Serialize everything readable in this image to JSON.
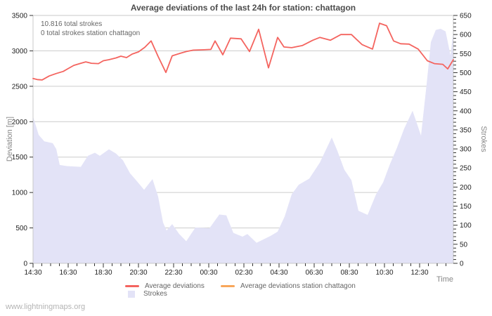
{
  "title": "Average deviations of the last 24h for station: chattagon",
  "annotation": {
    "line1": "10.816 total strokes",
    "line2": "0 total strokes station chattagon"
  },
  "watermark": "www.lightningmaps.org",
  "axes": {
    "left": {
      "label": "Deviation [m]"
    },
    "right": {
      "label": "Strokes"
    },
    "x": {
      "label": "Time"
    }
  },
  "legend": {
    "items": [
      {
        "label": "Average deviations",
        "color": "#f4645f",
        "shape": "line"
      },
      {
        "label": "Average deviations station chattagon",
        "color": "#f8a65a",
        "shape": "line"
      },
      {
        "label": "Strokes",
        "color": "#e3e3f7",
        "shape": "square"
      }
    ]
  },
  "colors": {
    "line_red": "#f4645f",
    "line_orange": "#f8a65a",
    "area_lavender": "#e3e3f7",
    "grid": "#cccccc",
    "frame": "#c8c8c8",
    "tick": "#333333",
    "background": "#ffffff"
  },
  "chart_data": {
    "type": "line+area",
    "title": "Average deviations of the last 24h for station: chattagon",
    "xlabel": "Time",
    "x_domain_hours": [
      0,
      23.92
    ],
    "x_minor_step_hours": 0.5,
    "x_ticks": {
      "hours": [
        0,
        2,
        4,
        6,
        8,
        10,
        12,
        14,
        16,
        18,
        20,
        22
      ],
      "labels": [
        "14:30",
        "16:30",
        "18:30",
        "20:30",
        "22:30",
        "00:30",
        "02:30",
        "04:30",
        "06:30",
        "08:30",
        "10:30",
        "12:30"
      ]
    },
    "left_axis": {
      "label": "Deviation [m]",
      "min": 0,
      "max": 3500,
      "step": 500
    },
    "right_axis": {
      "label": "Strokes",
      "min": 0,
      "max": 650,
      "step": 50,
      "minor_step": 10
    },
    "grid": true,
    "legend_position": "bottom",
    "series": [
      {
        "name": "Average deviations",
        "type": "line",
        "axis": "left",
        "color": "#f4645f",
        "points": [
          [
            0,
            2610
          ],
          [
            0.24,
            2595
          ],
          [
            0.52,
            2590
          ],
          [
            0.92,
            2645
          ],
          [
            1.32,
            2680
          ],
          [
            1.72,
            2710
          ],
          [
            2,
            2750
          ],
          [
            2.32,
            2795
          ],
          [
            2.72,
            2825
          ],
          [
            3,
            2845
          ],
          [
            3.32,
            2825
          ],
          [
            3.72,
            2820
          ],
          [
            4,
            2860
          ],
          [
            4.32,
            2875
          ],
          [
            4.72,
            2900
          ],
          [
            5,
            2925
          ],
          [
            5.32,
            2905
          ],
          [
            5.64,
            2955
          ],
          [
            6,
            2985
          ],
          [
            6.36,
            3050
          ],
          [
            6.72,
            3140
          ],
          [
            7.12,
            2920
          ],
          [
            7.56,
            2695
          ],
          [
            7.92,
            2930
          ],
          [
            8.36,
            2965
          ],
          [
            8.72,
            2990
          ],
          [
            9.12,
            3010
          ],
          [
            9.72,
            3015
          ],
          [
            10.12,
            3020
          ],
          [
            10.36,
            3140
          ],
          [
            10.8,
            2945
          ],
          [
            11.24,
            3180
          ],
          [
            11.84,
            3170
          ],
          [
            12.32,
            2990
          ],
          [
            12.84,
            3305
          ],
          [
            13.4,
            2760
          ],
          [
            13.92,
            3190
          ],
          [
            14.28,
            3055
          ],
          [
            14.72,
            3045
          ],
          [
            15.32,
            3075
          ],
          [
            15.92,
            3150
          ],
          [
            16.32,
            3190
          ],
          [
            16.92,
            3150
          ],
          [
            17.52,
            3230
          ],
          [
            18.12,
            3230
          ],
          [
            18.72,
            3090
          ],
          [
            19.32,
            3025
          ],
          [
            19.72,
            3390
          ],
          [
            20.12,
            3355
          ],
          [
            20.52,
            3140
          ],
          [
            20.92,
            3100
          ],
          [
            21.4,
            3095
          ],
          [
            21.92,
            3025
          ],
          [
            22.44,
            2860
          ],
          [
            22.84,
            2820
          ],
          [
            23.32,
            2810
          ],
          [
            23.6,
            2745
          ],
          [
            23.92,
            2875
          ]
        ]
      },
      {
        "name": "Average deviations station chattagon",
        "type": "line",
        "axis": "left",
        "color": "#f8a65a",
        "points": []
      },
      {
        "name": "Strokes",
        "type": "area",
        "axis": "right",
        "color": "#e3e3f7",
        "points": [
          [
            0,
            385
          ],
          [
            0.32,
            337
          ],
          [
            0.64,
            320
          ],
          [
            1.12,
            315
          ],
          [
            1.32,
            300
          ],
          [
            1.52,
            258
          ],
          [
            1.92,
            255
          ],
          [
            2.72,
            253
          ],
          [
            3.12,
            282
          ],
          [
            3.52,
            290
          ],
          [
            3.8,
            282
          ],
          [
            4.32,
            299
          ],
          [
            4.72,
            288
          ],
          [
            5.12,
            270
          ],
          [
            5.52,
            236
          ],
          [
            5.92,
            215
          ],
          [
            6.32,
            193
          ],
          [
            6.8,
            221
          ],
          [
            7.12,
            175
          ],
          [
            7.4,
            107
          ],
          [
            7.6,
            86
          ],
          [
            7.92,
            103
          ],
          [
            8.32,
            77
          ],
          [
            8.72,
            58
          ],
          [
            9.24,
            94
          ],
          [
            10.04,
            92
          ],
          [
            10.6,
            128
          ],
          [
            11,
            126
          ],
          [
            11.4,
            80
          ],
          [
            11.92,
            70
          ],
          [
            12.2,
            77
          ],
          [
            12.72,
            54
          ],
          [
            13.52,
            72
          ],
          [
            13.92,
            83
          ],
          [
            14.32,
            123
          ],
          [
            14.72,
            181
          ],
          [
            15.12,
            206
          ],
          [
            15.72,
            222
          ],
          [
            16.32,
            264
          ],
          [
            17,
            330
          ],
          [
            17.32,
            295
          ],
          [
            17.72,
            245
          ],
          [
            18.12,
            218
          ],
          [
            18.52,
            138
          ],
          [
            19.04,
            127
          ],
          [
            19.52,
            181
          ],
          [
            19.92,
            212
          ],
          [
            20.32,
            261
          ],
          [
            20.72,
            304
          ],
          [
            21.12,
            353
          ],
          [
            21.6,
            400
          ],
          [
            22.08,
            335
          ],
          [
            22.4,
            470
          ],
          [
            22.64,
            580
          ],
          [
            22.92,
            612
          ],
          [
            23.2,
            615
          ],
          [
            23.48,
            608
          ],
          [
            23.76,
            545
          ],
          [
            23.92,
            612
          ]
        ]
      }
    ]
  }
}
